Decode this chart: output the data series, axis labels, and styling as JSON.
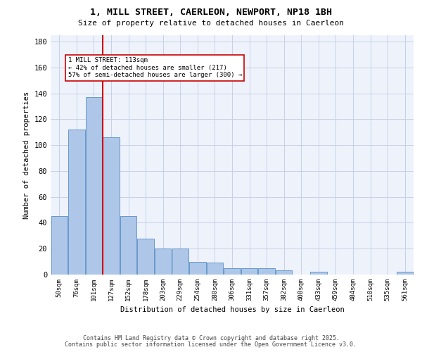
{
  "title1": "1, MILL STREET, CAERLEON, NEWPORT, NP18 1BH",
  "title2": "Size of property relative to detached houses in Caerleon",
  "xlabel": "Distribution of detached houses by size in Caerleon",
  "ylabel": "Number of detached properties",
  "categories": [
    "50sqm",
    "76sqm",
    "101sqm",
    "127sqm",
    "152sqm",
    "178sqm",
    "203sqm",
    "229sqm",
    "254sqm",
    "280sqm",
    "306sqm",
    "331sqm",
    "357sqm",
    "382sqm",
    "408sqm",
    "433sqm",
    "459sqm",
    "484sqm",
    "510sqm",
    "535sqm",
    "561sqm"
  ],
  "values": [
    45,
    112,
    137,
    106,
    45,
    28,
    20,
    20,
    10,
    9,
    5,
    5,
    5,
    3,
    0,
    2,
    0,
    0,
    0,
    0,
    2
  ],
  "bar_color": "#aec6e8",
  "bar_edge_color": "#6699cc",
  "vline_x_index": 2,
  "vline_color": "#cc0000",
  "annotation_text": "1 MILL STREET: 113sqm\n← 42% of detached houses are smaller (217)\n57% of semi-detached houses are larger (300) →",
  "ylim": [
    0,
    185
  ],
  "yticks": [
    0,
    20,
    40,
    60,
    80,
    100,
    120,
    140,
    160,
    180
  ],
  "footer1": "Contains HM Land Registry data © Crown copyright and database right 2025.",
  "footer2": "Contains public sector information licensed under the Open Government Licence v3.0.",
  "bg_color": "#eef2fb",
  "grid_color": "#c8d0e8"
}
